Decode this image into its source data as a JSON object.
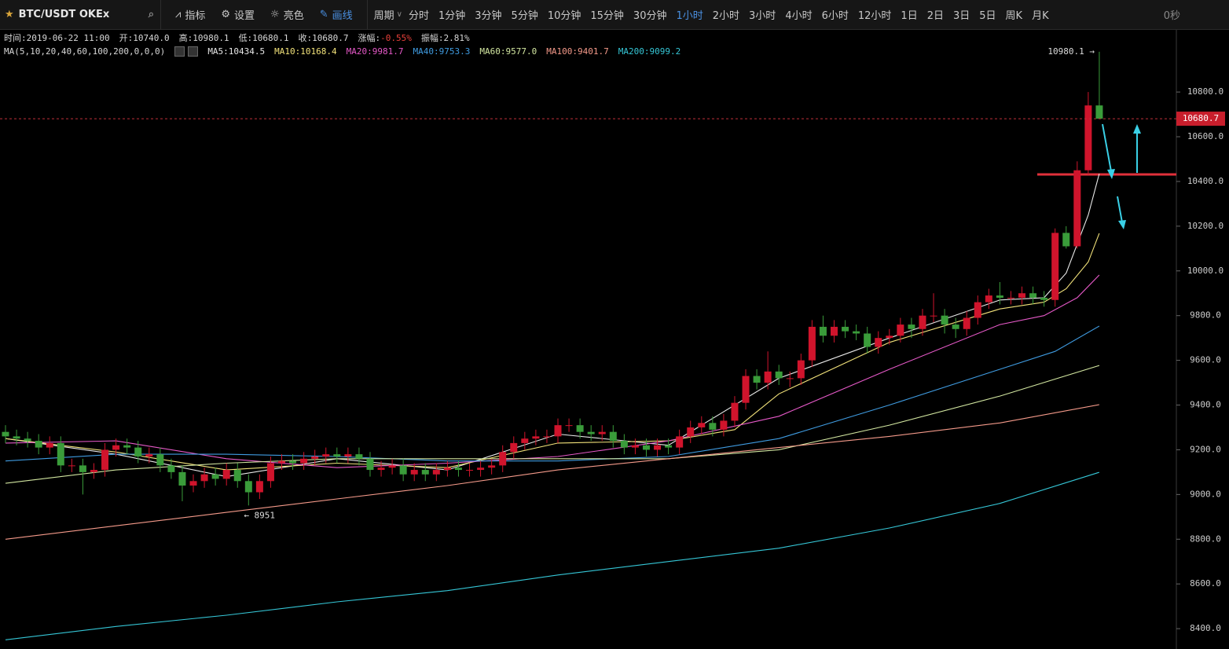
{
  "toolbar": {
    "symbol": "BTC/USDT OKEx",
    "tools": [
      "指标",
      "设置",
      "亮色",
      "画线"
    ],
    "period_label": "周期",
    "periods": [
      "分时",
      "1分钟",
      "3分钟",
      "5分钟",
      "10分钟",
      "15分钟",
      "30分钟",
      "1小时",
      "2小时",
      "3小时",
      "4小时",
      "6小时",
      "12小时",
      "1日",
      "2日",
      "3日",
      "5日",
      "周K",
      "月K"
    ],
    "countdown": "0秒"
  },
  "info": [
    {
      "text": "时间:2019-06-22 11:00"
    },
    {
      "text": "开:10740.0"
    },
    {
      "text": "高:10980.1"
    },
    {
      "text": "低:10680.1"
    },
    {
      "text": "收:10680.7"
    },
    {
      "text": "涨幅:",
      "value_text": "-0.55%"
    },
    {
      "text": "振幅:2.81%"
    }
  ],
  "chart_data": {
    "type": "candlestick",
    "ma_params": "MA(5,10,20,40,60,100,200,0,0,0)",
    "up_color": "#d0142c",
    "down_color": "#3a9c3a",
    "ylim": [
      8309,
      11078
    ],
    "yticks": [
      {
        "value": 8400,
        "label": "8400.0"
      },
      {
        "value": 8600,
        "label": "8600.0"
      },
      {
        "value": 8800,
        "label": "8800.0"
      },
      {
        "value": 9000,
        "label": "9000.0"
      },
      {
        "value": 9200,
        "label": "9200.0"
      },
      {
        "value": 9400,
        "label": "9400.0"
      },
      {
        "value": 9600,
        "label": "9600.0"
      },
      {
        "value": 9800,
        "label": "9800.0"
      },
      {
        "value": 10000,
        "label": "10000.0"
      },
      {
        "value": 10200,
        "label": "10200.0"
      },
      {
        "value": 10400,
        "label": "10400.0"
      },
      {
        "value": 10600,
        "label": "10600.0"
      },
      {
        "value": 10800,
        "label": "10800.0"
      }
    ],
    "last_price": 10680.7,
    "open": [
      9280,
      9260,
      9250,
      9240,
      9210,
      9230,
      9130,
      9130,
      9100,
      9110,
      9200,
      9220,
      9210,
      9170,
      9180,
      9130,
      9100,
      9040,
      9060,
      9090,
      9070,
      9110,
      9060,
      9010,
      9060,
      9140,
      9150,
      9140,
      9160,
      9170,
      9180,
      9170,
      9180,
      9160,
      9110,
      9120,
      9130,
      9090,
      9110,
      9090,
      9110,
      9120,
      9110,
      9110,
      9120,
      9130,
      9190,
      9230,
      9250,
      9260,
      9260,
      9310,
      9310,
      9280,
      9270,
      9280,
      9240,
      9210,
      9220,
      9200,
      9220,
      9210,
      9260,
      9300,
      9320,
      9290,
      9330,
      9410,
      9530,
      9500,
      9550,
      9520,
      9520,
      9600,
      9750,
      9710,
      9750,
      9730,
      9720,
      9660,
      9700,
      9710,
      9760,
      9740,
      9800,
      9800,
      9760,
      9740,
      9790,
      9860,
      9890,
      9880,
      9880,
      9900,
      9880,
      9870,
      10170,
      10110,
      10450,
      10740
    ],
    "high": [
      9310,
      9290,
      9280,
      9270,
      9260,
      9260,
      9160,
      9160,
      9140,
      9230,
      9250,
      9250,
      9240,
      9210,
      9210,
      9160,
      9130,
      9090,
      9120,
      9120,
      9140,
      9140,
      9090,
      9090,
      9170,
      9180,
      9180,
      9190,
      9200,
      9210,
      9210,
      9210,
      9210,
      9190,
      9150,
      9160,
      9160,
      9140,
      9140,
      9140,
      9150,
      9150,
      9140,
      9150,
      9160,
      9220,
      9260,
      9280,
      9290,
      9290,
      9340,
      9340,
      9340,
      9310,
      9310,
      9310,
      9270,
      9250,
      9250,
      9250,
      9250,
      9290,
      9330,
      9350,
      9350,
      9360,
      9440,
      9560,
      9560,
      9640,
      9580,
      9550,
      9630,
      9780,
      9800,
      9780,
      9780,
      9760,
      9750,
      9730,
      9740,
      9790,
      9790,
      9830,
      9900,
      9830,
      9790,
      9820,
      9890,
      9920,
      9950,
      9910,
      9930,
      9930,
      9910,
      10190,
      10200,
      10490,
      10800,
      10980.1
    ],
    "low": [
      9230,
      9220,
      9210,
      9180,
      9180,
      9100,
      9100,
      9000,
      9070,
      9080,
      9170,
      9180,
      9140,
      9140,
      9100,
      9070,
      8970,
      9010,
      9030,
      9040,
      9040,
      9030,
      8951,
      8980,
      9030,
      9110,
      9110,
      9110,
      9130,
      9140,
      9140,
      9140,
      9130,
      9080,
      9080,
      9090,
      9060,
      9060,
      9060,
      9060,
      9080,
      9080,
      9080,
      9080,
      9090,
      9100,
      9160,
      9200,
      9220,
      9230,
      9230,
      9280,
      9250,
      9240,
      9240,
      9210,
      9180,
      9180,
      9170,
      9170,
      9180,
      9180,
      9230,
      9270,
      9260,
      9260,
      9300,
      9380,
      9470,
      9470,
      9490,
      9480,
      9490,
      9570,
      9680,
      9680,
      9700,
      9690,
      9630,
      9630,
      9670,
      9680,
      9700,
      9710,
      9770,
      9720,
      9700,
      9710,
      9760,
      9830,
      9850,
      9850,
      9850,
      9850,
      9840,
      9840,
      10100,
      10100,
      10430,
      10680.1
    ],
    "close": [
      9260,
      9250,
      9240,
      9210,
      9230,
      9130,
      9130,
      9100,
      9110,
      9200,
      9220,
      9210,
      9170,
      9180,
      9130,
      9100,
      9040,
      9060,
      9090,
      9070,
      9110,
      9060,
      9010,
      9060,
      9140,
      9150,
      9140,
      9160,
      9170,
      9180,
      9170,
      9180,
      9160,
      9110,
      9120,
      9130,
      9090,
      9110,
      9090,
      9110,
      9120,
      9110,
      9110,
      9120,
      9130,
      9190,
      9230,
      9250,
      9260,
      9260,
      9310,
      9310,
      9280,
      9270,
      9280,
      9240,
      9210,
      9220,
      9200,
      9220,
      9210,
      9260,
      9300,
      9320,
      9290,
      9330,
      9410,
      9530,
      9500,
      9550,
      9520,
      9520,
      9600,
      9750,
      9710,
      9750,
      9730,
      9720,
      9660,
      9700,
      9710,
      9760,
      9740,
      9800,
      9800,
      9760,
      9740,
      9790,
      9860,
      9890,
      9880,
      9880,
      9900,
      9880,
      9870,
      10170,
      10110,
      10450,
      10740,
      10680.7
    ],
    "series": [
      {
        "name": "MA5:10434.5",
        "color": "#e8e8e8",
        "x": [
          0,
          10,
          20,
          30,
          40,
          50,
          60,
          70,
          80,
          90,
          94,
          96,
          98,
          99
        ],
        "values": [
          9250,
          9180,
          9080,
          9160,
          9110,
          9270,
          9220,
          9520,
          9700,
          9870,
          9880,
          9990,
          10250,
          10434.5
        ]
      },
      {
        "name": "MA10:10168.4",
        "color": "#f2e27a",
        "x": [
          0,
          10,
          20,
          30,
          40,
          50,
          60,
          66,
          70,
          80,
          90,
          94,
          96,
          98,
          99
        ],
        "values": [
          9250,
          9190,
          9110,
          9140,
          9120,
          9230,
          9240,
          9290,
          9450,
          9680,
          9830,
          9860,
          9920,
          10040,
          10168.4
        ]
      },
      {
        "name": "MA20:9981.7",
        "color": "#e659c8",
        "x": [
          0,
          10,
          20,
          30,
          40,
          50,
          60,
          70,
          80,
          90,
          94,
          97,
          99
        ],
        "values": [
          9230,
          9240,
          9160,
          9120,
          9140,
          9170,
          9240,
          9350,
          9560,
          9760,
          9800,
          9880,
          9981.7
        ]
      },
      {
        "name": "MA40:9753.3",
        "color": "#3f9be0",
        "x": [
          0,
          10,
          20,
          30,
          40,
          50,
          60,
          70,
          80,
          90,
          95,
          99
        ],
        "values": [
          9150,
          9180,
          9180,
          9170,
          9150,
          9150,
          9170,
          9250,
          9400,
          9560,
          9640,
          9753.3
        ]
      },
      {
        "name": "MA60:9577.0",
        "color": "#d2e6a0",
        "x": [
          0,
          10,
          20,
          30,
          40,
          50,
          60,
          70,
          80,
          90,
          99
        ],
        "values": [
          9050,
          9110,
          9140,
          9160,
          9160,
          9160,
          9160,
          9200,
          9310,
          9440,
          9577.0
        ]
      },
      {
        "name": "MA100:9401.7",
        "color": "#f59a8a",
        "x": [
          0,
          10,
          20,
          30,
          40,
          50,
          60,
          70,
          80,
          90,
          99
        ],
        "values": [
          8800,
          8860,
          8920,
          8980,
          9040,
          9110,
          9160,
          9210,
          9260,
          9320,
          9401.7
        ]
      },
      {
        "name": "MA200:9099.2",
        "color": "#35c6d6",
        "x": [
          0,
          10,
          20,
          30,
          40,
          50,
          60,
          70,
          80,
          90,
          99
        ],
        "values": [
          8350,
          8410,
          8460,
          8520,
          8570,
          8640,
          8700,
          8760,
          8850,
          8960,
          9099.2
        ]
      }
    ],
    "annotations": [
      {
        "text": "10980.1 →",
        "value": 10980.1,
        "x": 99
      },
      {
        "text": "← 8951",
        "value": 8951,
        "x": 22
      }
    ]
  }
}
